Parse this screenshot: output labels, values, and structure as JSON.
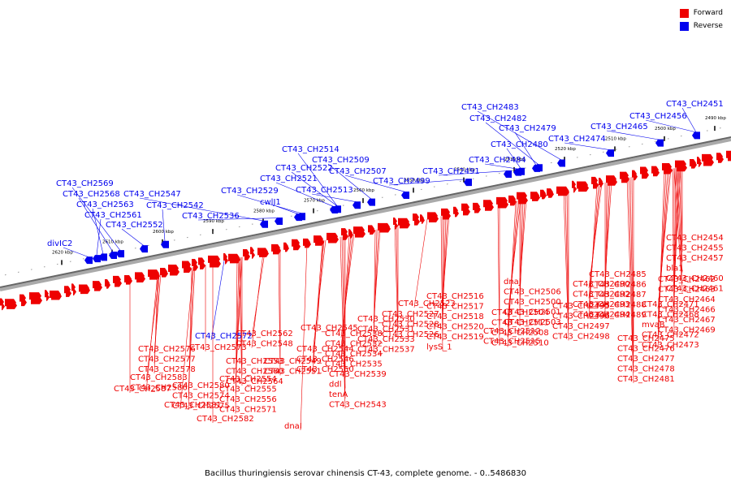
{
  "legend": {
    "forward_label": "Forward",
    "forward_color": "#ee0000",
    "reverse_label": "Reverse",
    "reverse_color": "#0000ee"
  },
  "caption": "Bacillus thuringiensis serovar chinensis CT-43, complete genome. - 0..5486830",
  "ticks": [
    "2490 kbp",
    "2500 kbp",
    "2510 kbp",
    "2520 kbp",
    "2530 kbp",
    "2540 kbp",
    "2550 kbp",
    "2560 kbp",
    "2570 kbp",
    "2580 kbp",
    "2590 kbp",
    "2600 kbp",
    "2610 kbp",
    "2620 kbp"
  ],
  "reverse_labels": [
    "CT43_CH2451",
    "CT43_CH2456",
    "CT43_CH2465",
    "CT43_CH2474",
    "CT43_CH2483",
    "CT43_CH2482",
    "CT43_CH2479",
    "CT43_CH2480",
    "CT43_CH2484",
    "CT43_CH2491",
    "CT43_CH2499",
    "CT43_CH2507",
    "CT43_CH2509",
    "CT43_CH2513",
    "CT43_CH2514",
    "CT43_CH2522",
    "CT43_CH2521",
    "CT43_CH2529",
    "cwlJ1",
    "CT43_CH2536",
    "CT43_CH2547",
    "CT43_CH2542",
    "CT43_CH2552",
    "CT43_CH2569",
    "CT43_CH2568",
    "CT43_CH2563",
    "CT43_CH2561",
    "divIC2"
  ],
  "forward_labels": [
    "CT43_CH2454",
    "CT43_CH2455",
    "CT43_CH2457",
    "bla1",
    "CT43_CH2460",
    "CT43_CH2461",
    "CT43_CH2462",
    "CT43_CH2463",
    "CT43_CH2464",
    "CT43_CH2466",
    "CT43_CH2467",
    "CT43_CH2469",
    "CT43_CH2471",
    "CT43_CH2468",
    "mvaB",
    "CT43_CH2472",
    "CT43_CH2473",
    "CT43_CH2475",
    "CT43_CH2476",
    "CT43_CH2477",
    "CT43_CH2478",
    "CT43_CH2481",
    "CT43_CH2485",
    "CT43_CH2486",
    "CT43_CH2487",
    "CT43_CH2488",
    "CT43_CH2489",
    "CT43_CH2490",
    "CT43_CH2492",
    "CT43_CH2493",
    "CT43_CH2494",
    "CT43_CH2495",
    "CT43_CH2496",
    "CT43_CH2497",
    "CT43_CH2498",
    "dnaJ",
    "CT43_CH2506",
    "CT43_CH2500",
    "CT43_CH2501",
    "CT43_CH2503",
    "CT43_CH2504",
    "CT43_CH2511",
    "CT43_CH2508",
    "CT43_CH2510",
    "CT43_CH2512",
    "CT43_CH2515",
    "CT43_CH2516",
    "CT43_CH2517",
    "CT43_CH2518",
    "CT43_CH2520",
    "CT43_CH2519",
    "lysS_1",
    "CT43_CH2523",
    "CT43_CH2527",
    "CT43_CH2528",
    "CT43_CH2526",
    "CT43_CH2530",
    "CT43_CH2531",
    "CT43_CH2533",
    "CT43_CH2537",
    "CT43_CH2538",
    "CT43_CH2532",
    "CT43_CH2534",
    "CT43_CH2535",
    "CT43_CH2539",
    "ddl",
    "tenA",
    "CT43_CH2543",
    "CT43_CH2545",
    "CT43_CH2544",
    "CT43_CH2546",
    "CT43_CH2550",
    "CT43_CH2549",
    "CT43_CH2551",
    "dnaI",
    "CT43_CH2562",
    "CT43_CH2548",
    "CT43_CH2553",
    "CT43_CH2560",
    "CT43_CH2564",
    "CT43_CH2554",
    "CT43_CH2555",
    "CT43_CH2556",
    "CT43_CH2571",
    "CT43_CH2572",
    "CT43_CH2573",
    "CT43_CH2580",
    "CT43_CH2574",
    "CT43_CH2575",
    "CT43_CH2581",
    "CT43_CH2582",
    "CT43_CH2576",
    "CT43_CH2577",
    "CT43_CH2578",
    "CT43_CH2583",
    "CT43_CH2586",
    "CT43_CH2587"
  ]
}
